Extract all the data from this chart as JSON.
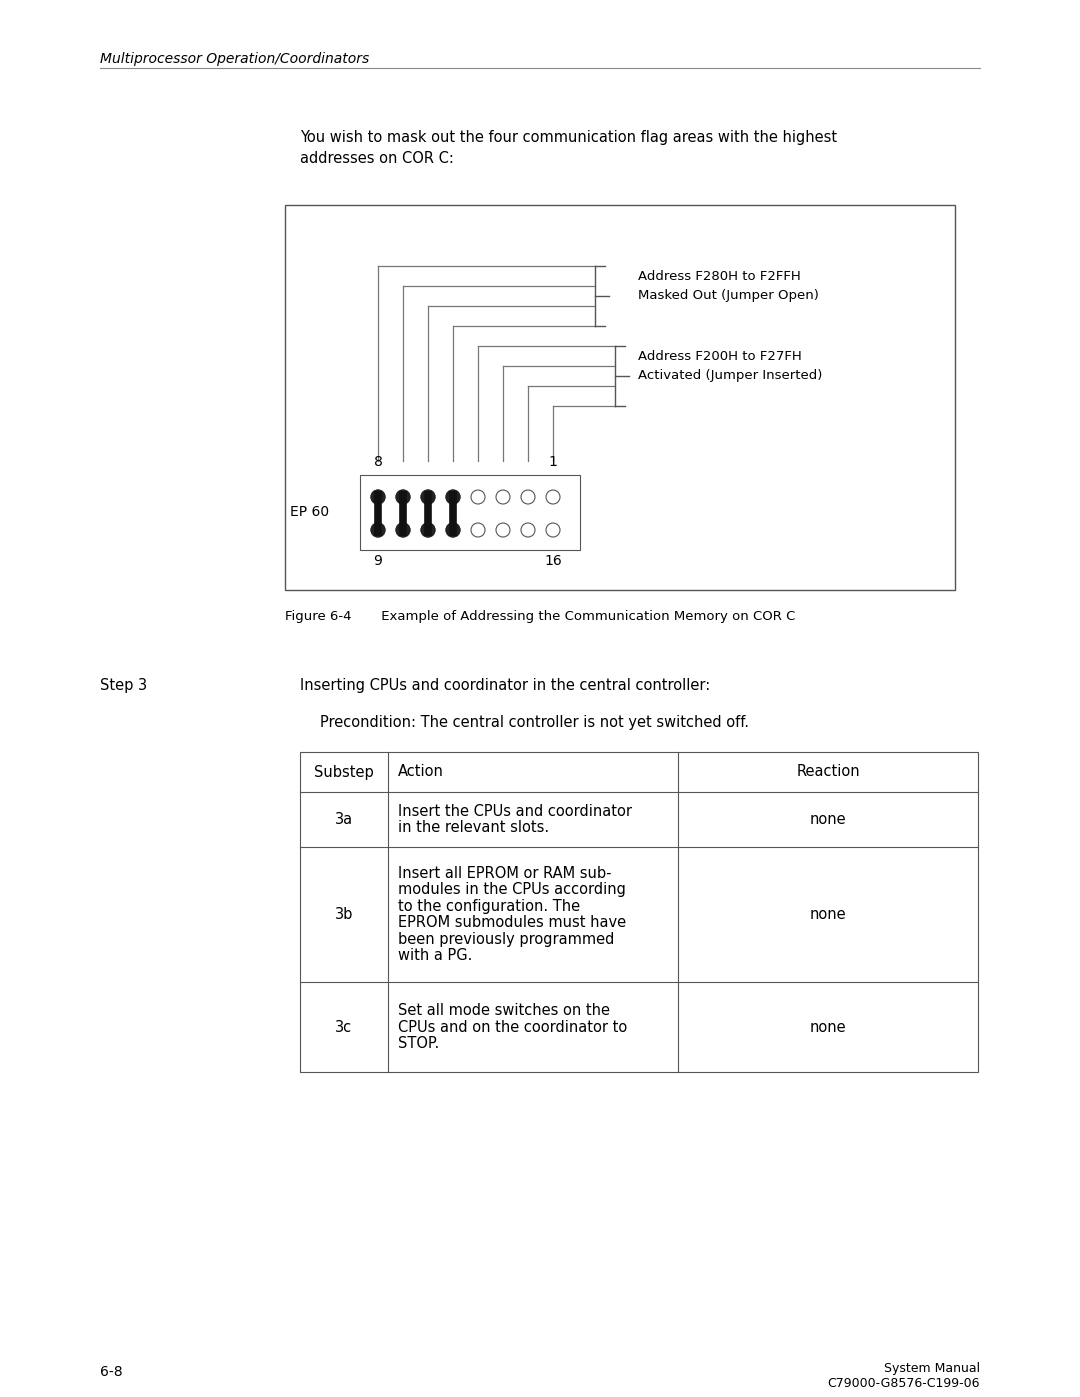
{
  "bg_color": "#ffffff",
  "text_color": "#000000",
  "header_text": "Multiprocessor Operation/Coordinators",
  "intro_text": "You wish to mask out the four communication flag areas with the highest\naddresses on COR C:",
  "figure_caption": "Figure 6-4       Example of Addressing the Communication Memory on COR C",
  "step_label": "Step 3",
  "step_text": "Inserting CPUs and coordinator in the central controller:",
  "precondition": "Precondition: The central controller is not yet switched off.",
  "table_headers": [
    "Substep",
    "Action",
    "Reaction"
  ],
  "table_rows": [
    {
      "substep": "3a",
      "action": "Insert the CPUs and coordinator\nin the relevant slots.",
      "reaction": "none"
    },
    {
      "substep": "3b",
      "action": "Insert all EPROM or RAM sub-\nmodules in the CPUs according\nto the configuration. The\nEPROM submodules must have\nbeen previously programmed\nwith a PG.",
      "reaction": "none"
    },
    {
      "substep": "3c",
      "action": "Set all mode switches on the\nCPUs and on the coordinator to\nSTOP.",
      "reaction": "none"
    }
  ],
  "footer_left": "6-8",
  "footer_right_top": "System Manual",
  "footer_right_bottom": "C79000-G8576-C199-06",
  "addr_label1_line1": "Address F200H to F27FH",
  "addr_label1_line2": "Activated (Jumper Inserted)",
  "addr_label2_line1": "Address F280H to F2FFH",
  "addr_label2_line2": "Masked Out (Jumper Open)",
  "ep60_label": "EP 60",
  "jumper_label_8": "8",
  "jumper_label_1": "1",
  "jumper_label_9": "9",
  "jumper_label_16": "16"
}
